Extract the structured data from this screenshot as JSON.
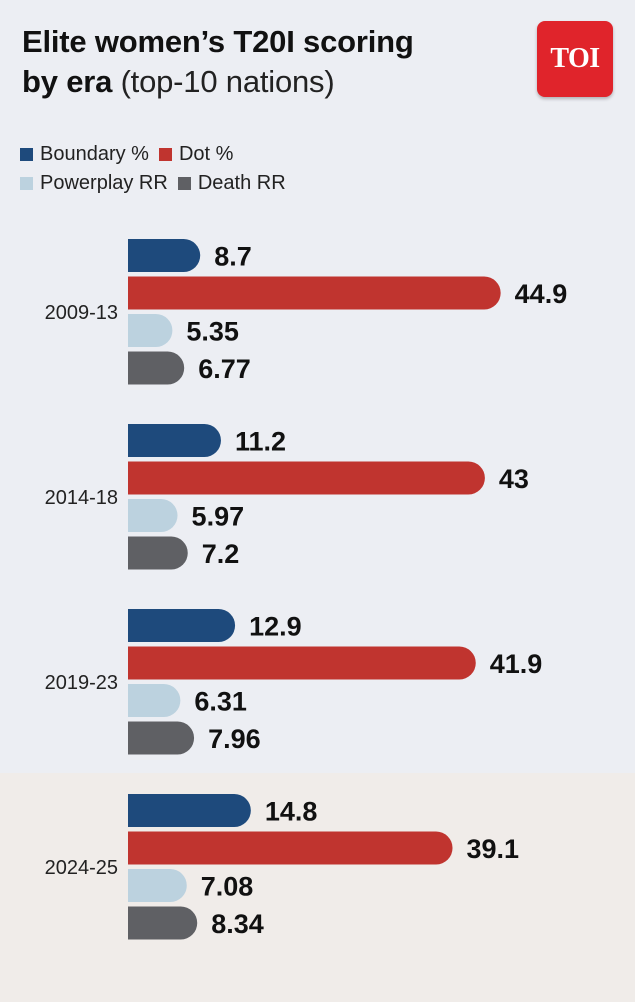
{
  "header": {
    "title_bold_1": "Elite women’s T20I scoring",
    "title_bold_2": "by era",
    "title_light": "(top-10 nations)"
  },
  "logo": {
    "text": "TOI",
    "color": "#e0242b"
  },
  "legend": [
    {
      "label": "Boundary %",
      "color": "#1e4a7c"
    },
    {
      "label": "Dot %",
      "color": "#c0342f"
    },
    {
      "label": "Powerplay RR",
      "color": "#bcd2df"
    },
    {
      "label": "Death RR",
      "color": "#5f6064"
    }
  ],
  "chart_data": {
    "type": "bar",
    "orientation": "horizontal",
    "categories": [
      "2009-13",
      "2014-18",
      "2019-23",
      "2024-25"
    ],
    "series": [
      {
        "name": "Boundary %",
        "color": "#1e4a7c",
        "values": [
          8.7,
          11.2,
          12.9,
          14.8
        ],
        "labels": [
          "8.7",
          "11.2",
          "12.9",
          "14.8"
        ]
      },
      {
        "name": "Dot %",
        "color": "#c0342f",
        "values": [
          44.9,
          43,
          41.9,
          39.1
        ],
        "labels": [
          "44.9",
          "43",
          "41.9",
          "39.1"
        ]
      },
      {
        "name": "Powerplay RR",
        "color": "#bcd2df",
        "values": [
          5.35,
          5.97,
          6.31,
          7.08
        ],
        "labels": [
          "5.35",
          "5.97",
          "6.31",
          "7.08"
        ]
      },
      {
        "name": "Death RR",
        "color": "#5f6064",
        "values": [
          6.77,
          7.2,
          7.96,
          8.34
        ],
        "labels": [
          "6.77",
          "7.2",
          "7.96",
          "8.34"
        ]
      }
    ],
    "highlighted_category": "2024-25",
    "grid": false,
    "legend_position": "top-left"
  }
}
